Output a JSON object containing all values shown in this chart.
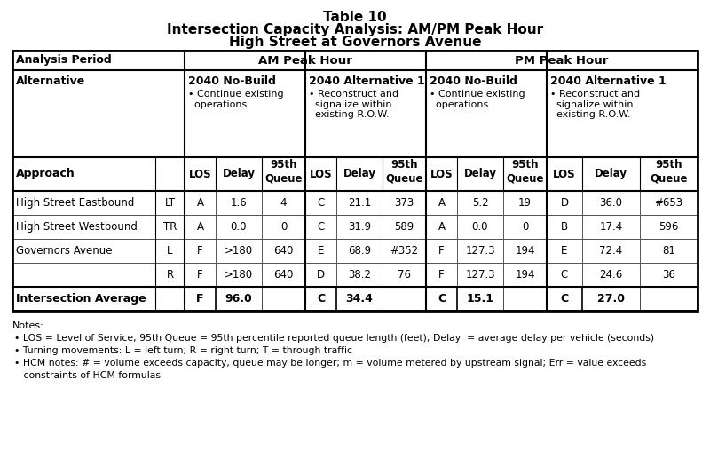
{
  "title_line1": "Table 10",
  "title_line2": "Intersection Capacity Analysis: AM/PM Peak Hour",
  "title_line3": "High Street at Governors Avenue",
  "rows": [
    [
      "High Street Eastbound",
      "LT",
      "A",
      "1.6",
      "4",
      "C",
      "21.1",
      "373",
      "A",
      "5.2",
      "19",
      "D",
      "36.0",
      "#653"
    ],
    [
      "High Street Westbound",
      "TR",
      "A",
      "0.0",
      "0",
      "C",
      "31.9",
      "589",
      "A",
      "0.0",
      "0",
      "B",
      "17.4",
      "596"
    ],
    [
      "Governors Avenue",
      "L",
      "F",
      ">180",
      "640",
      "E",
      "68.9",
      "#352",
      "F",
      "127.3",
      "194",
      "E",
      "72.4",
      "81"
    ],
    [
      "",
      "R",
      "F",
      ">180",
      "640",
      "D",
      "38.2",
      "76",
      "F",
      "127.3",
      "194",
      "C",
      "24.6",
      "36"
    ]
  ],
  "avg_row": [
    "Intersection Average",
    "F",
    "96.0",
    "C",
    "34.4",
    "C",
    "15.1",
    "C",
    "27.0"
  ],
  "notes": [
    "Notes:",
    "• LOS = Level of Service; 95th Queue = 95th percentile reported queue length (feet); Delay  = average delay per vehicle (seconds)",
    "• Turning movements: L = left turn; R = right turn; T = through traffic",
    "• HCM notes: # = volume exceeds capacity, queue may be longer; m = volume metered by upstream signal; Err = value exceeds",
    "   constraints of HCM formulas"
  ],
  "bg_color": "#ffffff"
}
